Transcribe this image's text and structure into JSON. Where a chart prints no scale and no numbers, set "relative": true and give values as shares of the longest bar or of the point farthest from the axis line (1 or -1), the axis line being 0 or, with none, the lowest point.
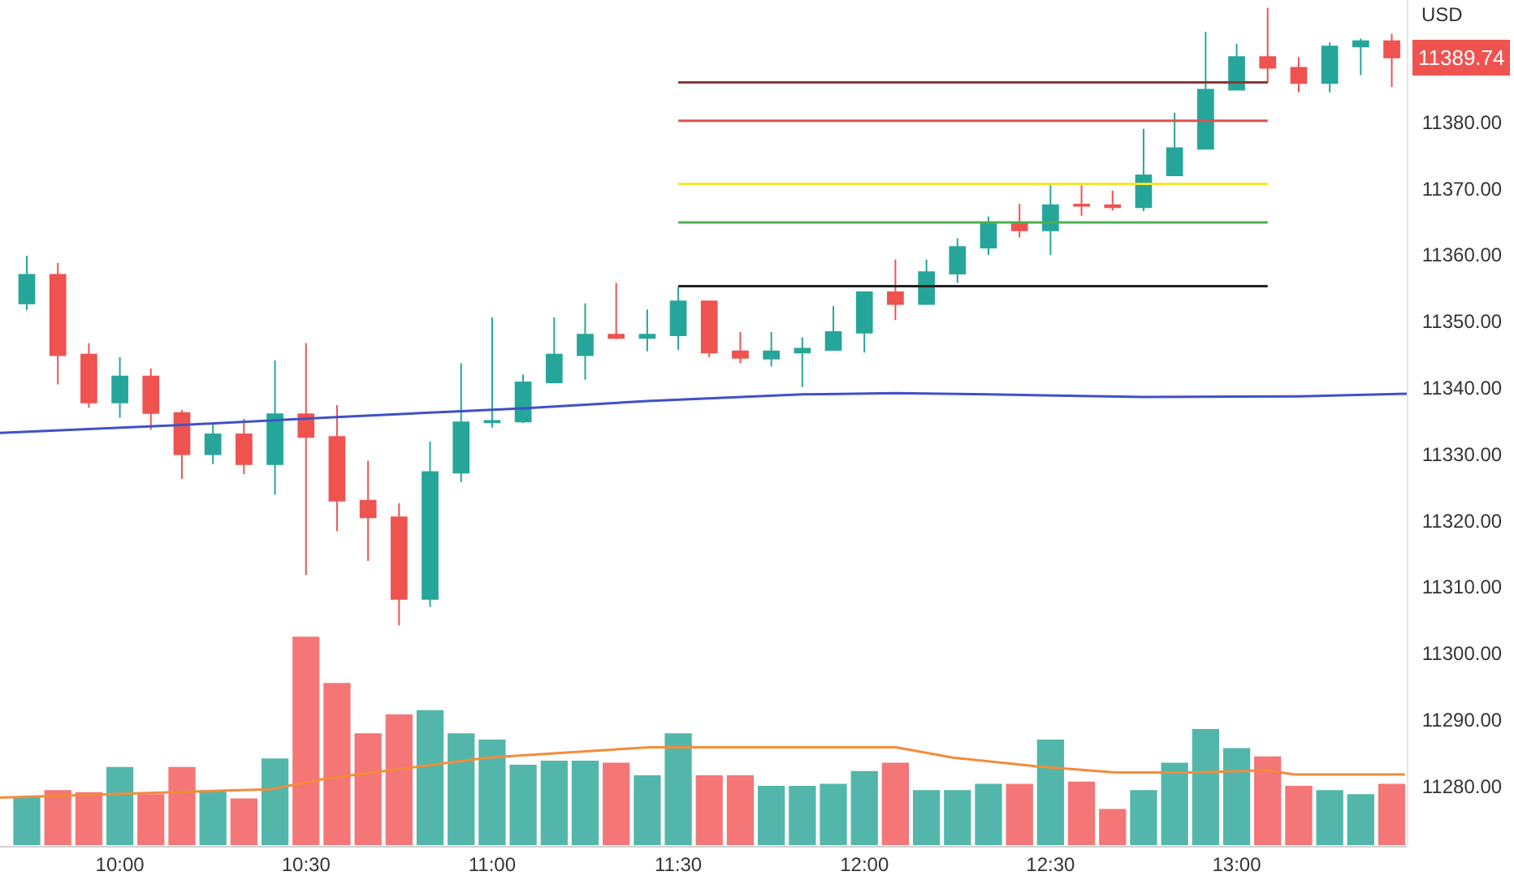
{
  "chart_data": [
    {
      "type": "candlestick",
      "ylabel": "USD",
      "annotations": [
        "11389.74"
      ],
      "x": [
        9.75,
        9.8333,
        9.9167,
        10,
        10.0833,
        10.1667,
        10.25,
        10.3333,
        10.4167,
        10.5,
        10.5833,
        10.6667,
        10.75,
        10.8333,
        10.9167,
        11,
        11.0833,
        11.1667,
        11.25,
        11.3333,
        11.4167,
        11.5,
        11.5833,
        11.6667,
        11.75,
        11.8333,
        11.9167,
        12,
        12.0833,
        12.1667,
        12.25,
        12.3333,
        12.4167,
        12.5,
        12.5833,
        12.6667,
        12.75,
        12.8333,
        12.9167,
        13,
        13.0833,
        13.1667,
        13.25,
        13.3333,
        13.4167
      ],
      "ohlc": [
        [
          11352.7,
          11359.9,
          11351.7,
          11357.0
        ],
        [
          11357.0,
          11358.8,
          11340.5,
          11344.9
        ],
        [
          11345.0,
          11346.7,
          11337.0,
          11337.8
        ],
        [
          11337.8,
          11344.6,
          11335.5,
          11341.7
        ],
        [
          11341.7,
          11342.9,
          11333.7,
          11336.2
        ],
        [
          11336.2,
          11336.7,
          11326.3,
          11330.0
        ],
        [
          11330.0,
          11334.7,
          11328.5,
          11333.0
        ],
        [
          11333.0,
          11335.3,
          11327.0,
          11328.5
        ],
        [
          11328.5,
          11344.1,
          11323.9,
          11336.0
        ],
        [
          11336.0,
          11346.7,
          11311.8,
          11332.6
        ],
        [
          11332.6,
          11337.4,
          11318.4,
          11323.0
        ],
        [
          11323.0,
          11329.0,
          11313.9,
          11320.5
        ],
        [
          11320.5,
          11322.6,
          11304.2,
          11308.2
        ],
        [
          11308.2,
          11331.9,
          11307.0,
          11327.3
        ],
        [
          11327.2,
          11343.7,
          11325.8,
          11334.8
        ],
        [
          11334.8,
          11350.6,
          11334.0,
          11335.0
        ],
        [
          11334.9,
          11342.0,
          11334.7,
          11340.8
        ],
        [
          11340.8,
          11350.6,
          11340.8,
          11345.0
        ],
        [
          11344.9,
          11352.7,
          11341.2,
          11348.0
        ],
        [
          11348.0,
          11355.8,
          11347.3,
          11347.5
        ],
        [
          11347.5,
          11351.8,
          11345.5,
          11348.0
        ],
        [
          11347.9,
          11355.2,
          11345.7,
          11353.0
        ],
        [
          11353.0,
          11353.0,
          11344.6,
          11345.3
        ],
        [
          11345.5,
          11348.4,
          11343.7,
          11344.5
        ],
        [
          11344.4,
          11348.4,
          11343.2,
          11345.5
        ],
        [
          11345.3,
          11347.6,
          11340.1,
          11345.9
        ],
        [
          11345.7,
          11352.3,
          11345.7,
          11348.4
        ],
        [
          11348.3,
          11354.4,
          11345.3,
          11354.4
        ],
        [
          11354.4,
          11359.3,
          11350.2,
          11352.6
        ],
        [
          11352.6,
          11359.3,
          11352.6,
          11357.4
        ],
        [
          11357.2,
          11362.5,
          11355.8,
          11361.2
        ],
        [
          11361.1,
          11365.8,
          11360.0,
          11364.9
        ],
        [
          11364.7,
          11367.7,
          11362.6,
          11363.7
        ],
        [
          11363.7,
          11370.5,
          11360.0,
          11367.5
        ],
        [
          11367.6,
          11370.5,
          11365.9,
          11367.4
        ],
        [
          11367.5,
          11369.7,
          11366.7,
          11367.2
        ],
        [
          11367.2,
          11379.0,
          11366.6,
          11372.0
        ],
        [
          11372.0,
          11381.4,
          11372.0,
          11376.1
        ],
        [
          11376.0,
          11393.6,
          11376.0,
          11384.9
        ],
        [
          11384.9,
          11391.8,
          11384.9,
          11389.8
        ],
        [
          11389.8,
          11397.2,
          11385.9,
          11388.2
        ],
        [
          11388.2,
          11389.8,
          11384.5,
          11385.9
        ],
        [
          11385.9,
          11392.0,
          11384.5,
          11391.4
        ],
        [
          11391.4,
          11392.6,
          11387.1,
          11392.2
        ],
        [
          11392.2,
          11393.3,
          11385.3,
          11389.74
        ]
      ],
      "colors": [
        "#26a69a",
        "#ef5350",
        "#ef5350",
        "#26a69a",
        "#ef5350",
        "#ef5350",
        "#26a69a",
        "#ef5350",
        "#26a69a",
        "#ef5350",
        "#ef5350",
        "#ef5350",
        "#ef5350",
        "#26a69a",
        "#26a69a",
        "#26a69a",
        "#26a69a",
        "#26a69a",
        "#26a69a",
        "#ef5350",
        "#26a69a",
        "#26a69a",
        "#ef5350",
        "#ef5350",
        "#26a69a",
        "#26a69a",
        "#26a69a",
        "#26a69a",
        "#ef5350",
        "#26a69a",
        "#26a69a",
        "#26a69a",
        "#ef5350",
        "#26a69a",
        "#ef5350",
        "#ef5350",
        "#26a69a",
        "#26a69a",
        "#26a69a",
        "#26a69a",
        "#ef5350",
        "#ef5350",
        "#26a69a",
        "#26a69a",
        "#ef5350"
      ],
      "series": [
        {
          "type": "line",
          "color": "#3f51c8",
          "x": [
            9.678,
            10.1667,
            10.5833,
            11.0833,
            11.4167,
            11.8333,
            12.0833,
            12.3333,
            12.75,
            13.1667,
            13.457
          ],
          "values": [
            11333.2,
            11334.4,
            11335.6,
            11336.9,
            11338.0,
            11339.0,
            11339.2,
            11339.0,
            11338.6,
            11338.7,
            11339.1
          ]
        },
        {
          "type": "line",
          "color": "#883838",
          "x": [
            11.5,
            13.0833
          ],
          "values": [
            11386.0,
            11386.0
          ]
        },
        {
          "type": "line",
          "color": "#e05050",
          "x": [
            11.5,
            13.0833
          ],
          "values": [
            11380.2,
            11380.2
          ]
        },
        {
          "type": "line",
          "color": "#f5e52a",
          "x": [
            11.5,
            13.0833
          ],
          "values": [
            11370.7,
            11370.7
          ]
        },
        {
          "type": "line",
          "color": "#4caf50",
          "x": [
            11.5,
            13.0833
          ],
          "values": [
            11364.9,
            11364.9
          ]
        },
        {
          "type": "line",
          "color": "#222222",
          "x": [
            11.5,
            13.0833
          ],
          "values": [
            11355.3,
            11355.3
          ]
        }
      ],
      "xlim": [
        9.678,
        13.457
      ],
      "ylim": [
        11271,
        11398.4
      ],
      "yticks": [
        {
          "value": 11280,
          "label": "11280.00"
        },
        {
          "value": 11290,
          "label": "11290.00"
        },
        {
          "value": 11300,
          "label": "11300.00"
        },
        {
          "value": 11310,
          "label": "11310.00"
        },
        {
          "value": 11320,
          "label": "11320.00"
        },
        {
          "value": 11330,
          "label": "11330.00"
        },
        {
          "value": 11340,
          "label": "11340.00"
        },
        {
          "value": 11350,
          "label": "11350.00"
        },
        {
          "value": 11360,
          "label": "11360.00"
        },
        {
          "value": 11370,
          "label": "11370.00"
        },
        {
          "value": 11380,
          "label": "11380.00"
        }
      ],
      "tick_labels": "y"
    },
    {
      "type": "bar",
      "relative": true,
      "series": [
        {
          "type": "bar",
          "x": [
            9.75,
            9.8333,
            9.9167,
            10,
            10.0833,
            10.1667,
            10.25,
            10.3333,
            10.4167,
            10.5,
            10.5833,
            10.6667,
            10.75,
            10.8333,
            10.9167,
            11,
            11.0833,
            11.1667,
            11.25,
            11.3333,
            11.4167,
            11.5,
            11.5833,
            11.6667,
            11.75,
            11.8333,
            11.9167,
            12,
            12.0833,
            12.1667,
            12.25,
            12.3333,
            12.4167,
            12.5,
            12.5833,
            12.6667,
            12.75,
            12.8333,
            12.9167,
            13,
            13.0833,
            13.1667,
            13.25,
            13.3333,
            13.4167
          ],
          "values": [
            0.24,
            0.27,
            0.26,
            0.38,
            0.25,
            0.38,
            0.27,
            0.23,
            0.42,
            1,
            0.78,
            0.54,
            0.63,
            0.65,
            0.54,
            0.51,
            0.39,
            0.41,
            0.41,
            0.4,
            0.34,
            0.54,
            0.34,
            0.34,
            0.29,
            0.29,
            0.3,
            0.36,
            0.4,
            0.27,
            0.27,
            0.3,
            0.3,
            0.51,
            0.31,
            0.18,
            0.27,
            0.4,
            0.56,
            0.47,
            0.43,
            0.29,
            0.27,
            0.25,
            0.3
          ],
          "colors": [
            "#52b7aa",
            "#f47676",
            "#f47676",
            "#52b7aa",
            "#f47676",
            "#f47676",
            "#52b7aa",
            "#f47676",
            "#52b7aa",
            "#f47676",
            "#f47676",
            "#f47676",
            "#f47676",
            "#52b7aa",
            "#52b7aa",
            "#52b7aa",
            "#52b7aa",
            "#52b7aa",
            "#52b7aa",
            "#f47676",
            "#52b7aa",
            "#52b7aa",
            "#f47676",
            "#f47676",
            "#52b7aa",
            "#52b7aa",
            "#52b7aa",
            "#52b7aa",
            "#f47676",
            "#52b7aa",
            "#52b7aa",
            "#52b7aa",
            "#f47676",
            "#52b7aa",
            "#f47676",
            "#f47676",
            "#52b7aa",
            "#52b7aa",
            "#52b7aa",
            "#52b7aa",
            "#f47676",
            "#f47676",
            "#52b7aa",
            "#52b7aa",
            "#f47676"
          ]
        },
        {
          "type": "line",
          "color": "#f48b3a",
          "x": [
            9.678,
            10.405,
            10.551,
            10.987,
            11.423,
            11.685,
            12.085,
            12.238,
            12.456,
            12.674,
            12.892,
            13.081,
            13.154,
            13.452
          ],
          "values": [
            0.23,
            0.27,
            0.32,
            0.42,
            0.47,
            0.47,
            0.47,
            0.42,
            0.38,
            0.35,
            0.35,
            0.36,
            0.34,
            0.34
          ]
        }
      ],
      "xlim": [
        9.678,
        13.457
      ],
      "xticks": [
        {
          "value": 10,
          "label": "10:00"
        },
        {
          "value": 10.5,
          "label": "10:30"
        },
        {
          "value": 11,
          "label": "11:00"
        },
        {
          "value": 11.5,
          "label": "11:30"
        },
        {
          "value": 12,
          "label": "12:00"
        },
        {
          "value": 12.5,
          "label": "12:30"
        },
        {
          "value": 13,
          "label": "13:00"
        }
      ],
      "tick_labels": "x"
    }
  ]
}
